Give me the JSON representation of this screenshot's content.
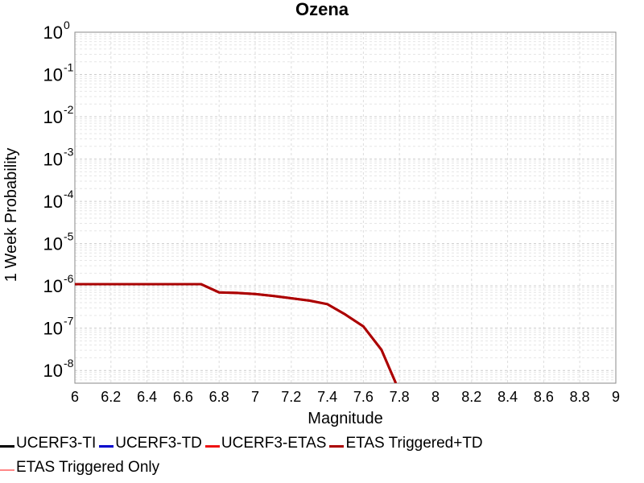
{
  "chart_data": {
    "type": "line",
    "title": "Ozena",
    "xlabel": "Magnitude",
    "ylabel": "1 Week Probability",
    "xlim": [
      6,
      9
    ],
    "ylim": [
      5e-09,
      1
    ],
    "yscale": "log",
    "grid": true,
    "x_ticks": [
      "6",
      "6.2",
      "6.4",
      "6.6",
      "6.8",
      "7",
      "7.2",
      "7.4",
      "7.6",
      "7.8",
      "8",
      "8.2",
      "8.4",
      "8.6",
      "8.8",
      "9"
    ],
    "y_ticks": [
      {
        "base": "10",
        "exp": "0"
      },
      {
        "base": "10",
        "exp": "-1"
      },
      {
        "base": "10",
        "exp": "-2"
      },
      {
        "base": "10",
        "exp": "-3"
      },
      {
        "base": "10",
        "exp": "-4"
      },
      {
        "base": "10",
        "exp": "-5"
      },
      {
        "base": "10",
        "exp": "-6"
      },
      {
        "base": "10",
        "exp": "-7"
      },
      {
        "base": "10",
        "exp": "-8"
      }
    ],
    "legend_position": "bottom",
    "series": [
      {
        "name": "UCERF3-TI",
        "color": "#000000",
        "width": 3,
        "x": [],
        "y": []
      },
      {
        "name": "UCERF3-TD",
        "color": "#0000cc",
        "width": 3,
        "x": [],
        "y": []
      },
      {
        "name": "UCERF3-ETAS",
        "color": "#ee1111",
        "width": 3,
        "x": [
          6.0,
          6.1,
          6.2,
          6.3,
          6.4,
          6.5,
          6.6,
          6.7,
          6.8,
          6.9,
          7.0,
          7.1,
          7.2,
          7.3,
          7.4,
          7.5,
          7.6,
          7.7,
          7.78
        ],
        "y": [
          1.1e-06,
          1.1e-06,
          1.1e-06,
          1.1e-06,
          1.1e-06,
          1.1e-06,
          1.1e-06,
          1.1e-06,
          7e-07,
          6.8e-07,
          6.4e-07,
          5.8e-07,
          5.1e-07,
          4.5e-07,
          3.7e-07,
          2.1e-07,
          1.1e-07,
          3.1e-08,
          5e-09
        ]
      },
      {
        "name": "ETAS Triggered+TD",
        "color": "#aa0000",
        "width": 3,
        "x": [
          6.0,
          6.1,
          6.2,
          6.3,
          6.4,
          6.5,
          6.6,
          6.7,
          6.8,
          6.9,
          7.0,
          7.1,
          7.2,
          7.3,
          7.4,
          7.5,
          7.6,
          7.7,
          7.78
        ],
        "y": [
          1.1e-06,
          1.1e-06,
          1.1e-06,
          1.1e-06,
          1.1e-06,
          1.1e-06,
          1.1e-06,
          1.1e-06,
          7e-07,
          6.8e-07,
          6.4e-07,
          5.8e-07,
          5.1e-07,
          4.5e-07,
          3.7e-07,
          2.1e-07,
          1.1e-07,
          3.1e-08,
          5e-09
        ]
      },
      {
        "name": "ETAS Triggered Only",
        "color": "#ff8888",
        "width": 2,
        "x": [],
        "y": []
      }
    ]
  }
}
